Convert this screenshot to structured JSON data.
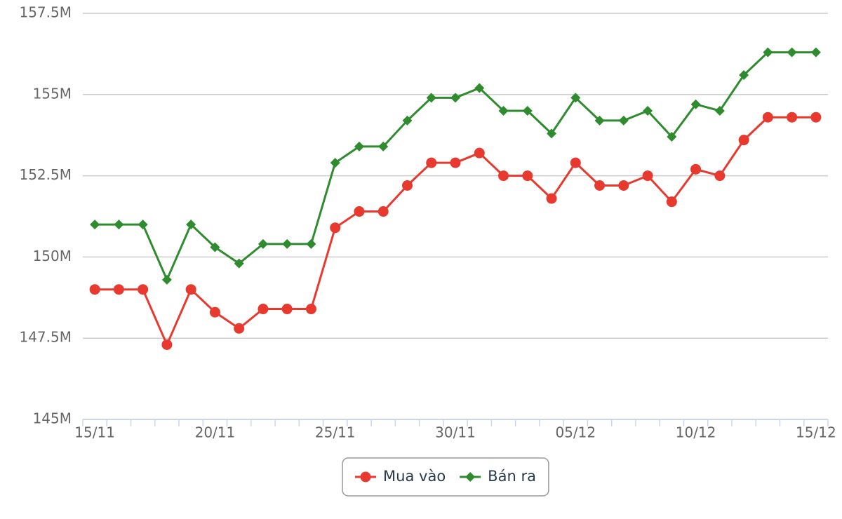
{
  "chart_data": {
    "type": "line",
    "categories": [
      "15/11",
      null,
      null,
      null,
      null,
      "20/11",
      null,
      null,
      null,
      null,
      "25/11",
      null,
      null,
      null,
      null,
      "30/11",
      null,
      null,
      null,
      null,
      "05/12",
      null,
      null,
      null,
      null,
      "10/12",
      null,
      null,
      null,
      null,
      "15/12"
    ],
    "series": [
      {
        "name": "Mua vào",
        "color": "#e8392f",
        "marker": "circle",
        "values": [
          149.0,
          149.0,
          149.0,
          147.3,
          149.0,
          148.3,
          147.8,
          148.4,
          148.4,
          148.4,
          150.9,
          151.4,
          151.4,
          152.2,
          152.9,
          152.9,
          153.2,
          152.5,
          152.5,
          151.8,
          152.9,
          152.2,
          152.2,
          152.5,
          151.7,
          152.7,
          152.5,
          153.6,
          154.3,
          154.3,
          154.3
        ]
      },
      {
        "name": "Bán ra",
        "color": "#2e8b2e",
        "marker": "diamond",
        "values": [
          151.0,
          151.0,
          151.0,
          149.3,
          151.0,
          150.3,
          149.8,
          150.4,
          150.4,
          150.4,
          152.9,
          153.4,
          153.4,
          154.2,
          154.9,
          154.9,
          155.2,
          154.5,
          154.5,
          153.8,
          154.9,
          154.2,
          154.2,
          154.5,
          153.7,
          154.7,
          154.5,
          155.6,
          156.3,
          156.3,
          156.3
        ]
      }
    ],
    "ylim": [
      145,
      157.5
    ],
    "yticks": [
      {
        "value": 145,
        "label": "145M"
      },
      {
        "value": 147.5,
        "label": "147.5M"
      },
      {
        "value": 150,
        "label": "150M"
      },
      {
        "value": 152.5,
        "label": "152.5M"
      },
      {
        "value": 155,
        "label": "155M"
      },
      {
        "value": 157.5,
        "label": "157.5M"
      }
    ],
    "grid": true,
    "legend": "bottom"
  }
}
